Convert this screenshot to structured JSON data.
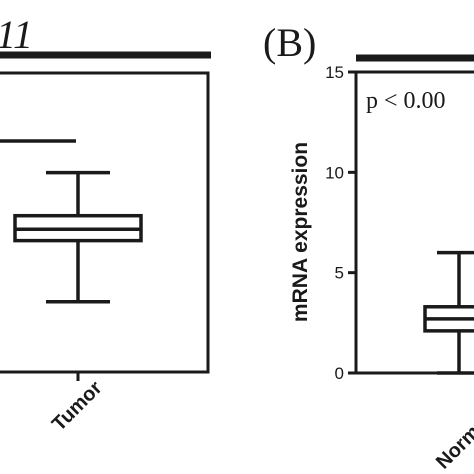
{
  "panel_a": {
    "title_fragment": "11",
    "chart_data": {
      "type": "box",
      "categories": [
        "Tumor"
      ],
      "boxes": [
        {
          "category": "Tumor",
          "whisker_low": 3.1,
          "q1": 5.8,
          "median": 6.3,
          "q3": 6.9,
          "whisker_high": 8.8
        }
      ],
      "extra_line_value": 10.2,
      "ylim": [
        0,
        13.2
      ]
    }
  },
  "panel_b": {
    "label": "(B)",
    "annotation": "p < 0.00",
    "chart_data": {
      "type": "box",
      "ylabel": "mRNA expression",
      "yticks": [
        0,
        5,
        10,
        15
      ],
      "ylim": [
        0,
        15
      ],
      "categories": [
        "Norm"
      ],
      "boxes": [
        {
          "category": "Norm",
          "whisker_low": 0,
          "q1": 2.1,
          "median": 2.7,
          "q3": 3.3,
          "whisker_high": 6
        }
      ]
    }
  },
  "colors": {
    "ink": "#1a1a1a",
    "background": "#ffffff"
  }
}
